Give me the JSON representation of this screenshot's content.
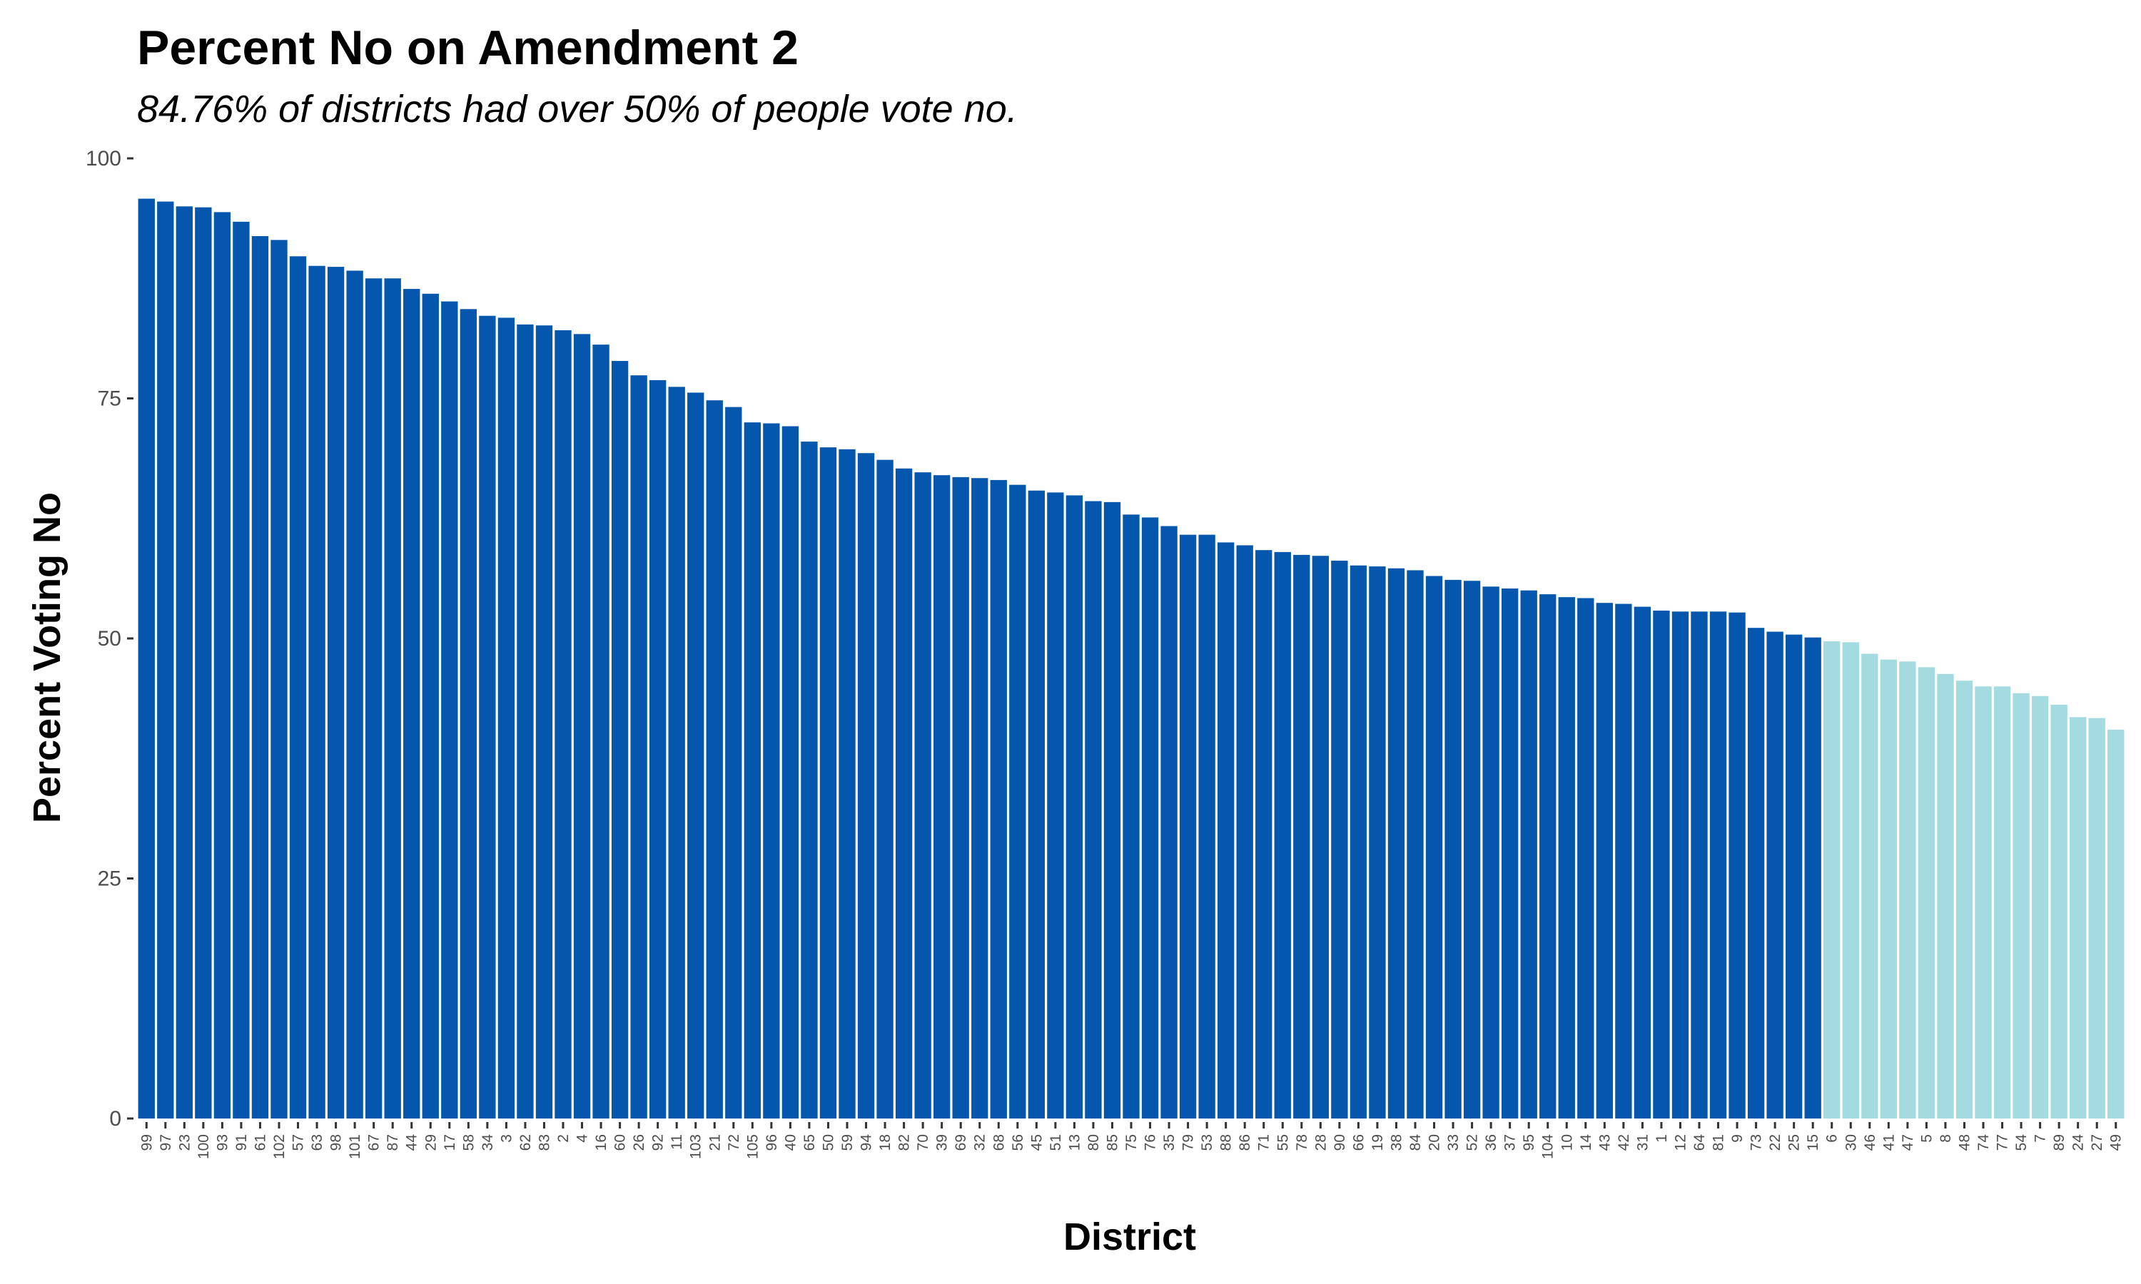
{
  "chart_data": {
    "type": "bar",
    "title": "Percent No on Amendment 2",
    "subtitle": "84.76% of districts had over 50% of people vote no.",
    "xlabel": "District",
    "ylabel": "Percent Voting No",
    "ylim": [
      0,
      100
    ],
    "yticks": [
      "0",
      "25",
      "50",
      "75",
      "100"
    ],
    "grid": false,
    "colors": {
      "over_50": "#0457AC",
      "under_50": "#A3DBE1"
    },
    "categories": [
      "99",
      "97",
      "23",
      "100",
      "93",
      "91",
      "61",
      "102",
      "57",
      "63",
      "98",
      "101",
      "67",
      "87",
      "44",
      "29",
      "17",
      "58",
      "34",
      "3",
      "62",
      "83",
      "2",
      "4",
      "16",
      "60",
      "26",
      "92",
      "11",
      "103",
      "21",
      "72",
      "105",
      "96",
      "40",
      "65",
      "50",
      "59",
      "94",
      "18",
      "82",
      "70",
      "39",
      "69",
      "32",
      "68",
      "56",
      "45",
      "51",
      "13",
      "80",
      "85",
      "75",
      "76",
      "35",
      "79",
      "53",
      "88",
      "86",
      "71",
      "55",
      "78",
      "28",
      "90",
      "66",
      "19",
      "38",
      "84",
      "20",
      "33",
      "52",
      "36",
      "37",
      "95",
      "104",
      "10",
      "14",
      "43",
      "42",
      "31",
      "1",
      "12",
      "64",
      "81",
      "9",
      "73",
      "22",
      "25",
      "15",
      "6",
      "30",
      "46",
      "41",
      "47",
      "5",
      "8",
      "48",
      "74",
      "77",
      "54",
      "7",
      "89",
      "24",
      "27",
      "49"
    ],
    "values": [
      95.8,
      95.5,
      95.0,
      94.9,
      94.4,
      93.4,
      91.9,
      91.5,
      89.8,
      88.8,
      88.7,
      88.3,
      87.5,
      87.5,
      86.4,
      85.9,
      85.1,
      84.3,
      83.6,
      83.4,
      82.7,
      82.6,
      82.1,
      81.7,
      80.6,
      78.9,
      77.4,
      76.9,
      76.2,
      75.6,
      74.8,
      74.1,
      72.5,
      72.4,
      72.1,
      70.5,
      69.9,
      69.7,
      69.3,
      68.6,
      67.7,
      67.3,
      67.0,
      66.8,
      66.7,
      66.5,
      66.0,
      65.4,
      65.2,
      64.9,
      64.3,
      64.2,
      62.9,
      62.6,
      61.7,
      60.8,
      60.8,
      60.0,
      59.7,
      59.2,
      59.0,
      58.7,
      58.6,
      58.1,
      57.6,
      57.5,
      57.3,
      57.1,
      56.5,
      56.1,
      56.0,
      55.4,
      55.2,
      55.0,
      54.6,
      54.3,
      54.2,
      53.7,
      53.6,
      53.3,
      52.9,
      52.8,
      52.8,
      52.8,
      52.7,
      51.1,
      50.7,
      50.4,
      50.1,
      49.7,
      49.6,
      48.4,
      47.8,
      47.6,
      47.0,
      46.3,
      45.6,
      45.0,
      45.0,
      44.3,
      44.0,
      43.1,
      41.8,
      41.7,
      40.5
    ]
  }
}
